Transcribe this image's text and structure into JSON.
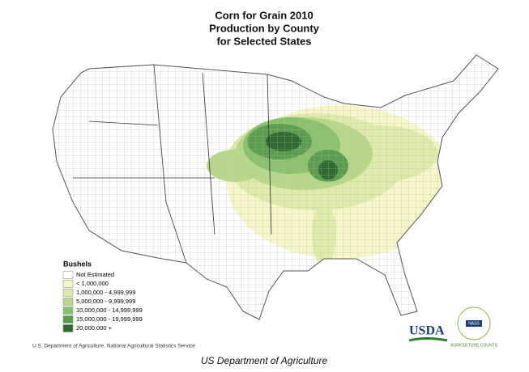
{
  "title": [
    "Corn for Grain 2010",
    "Production by County",
    "for Selected States"
  ],
  "legend": {
    "title": "Bushels",
    "items": [
      {
        "label": "Not Estimated",
        "color": "#ffffff"
      },
      {
        "label": "< 1,000,000",
        "color": "#f6f6c9"
      },
      {
        "label": "1,000,000 - 4,999,999",
        "color": "#dfeca9"
      },
      {
        "label": "5,000,000 - 9,999,999",
        "color": "#b7d88b"
      },
      {
        "label": "10,000,000 - 14,999,999",
        "color": "#8bc16d"
      },
      {
        "label": "15,000,000 - 19,999,999",
        "color": "#5b9f4e"
      },
      {
        "label": "20,000,000 +",
        "color": "#2f6a30"
      }
    ]
  },
  "source": "U.S. Department of Agriculture, National Agricultural Statistics Service",
  "caption": "US Department of Agriculture",
  "logo": {
    "usda": "USDA",
    "nass": "NASS",
    "arc": "AGRICULTURE COUNTS"
  }
}
